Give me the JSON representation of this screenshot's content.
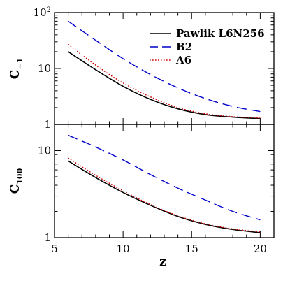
{
  "chart_data": [
    {
      "type": "line",
      "title": "",
      "xlabel": "z",
      "ylabel": "C",
      "ylabel_sub": "−1",
      "yscale": "log",
      "xlim": [
        5,
        21
      ],
      "ylim": [
        1,
        100
      ],
      "show_x_tick_labels": false,
      "grid": false,
      "legend": "top-right",
      "y_ticks": [
        {
          "value": 1,
          "base": "1",
          "exp": ""
        },
        {
          "value": 10,
          "base": "10",
          "exp": ""
        },
        {
          "value": 100,
          "base": "10",
          "exp": "2"
        }
      ],
      "series": [
        {
          "name": "Pawlik L6N256",
          "color": "#000000",
          "dash": "solid",
          "x": [
            6,
            8,
            10,
            12,
            14,
            16,
            18,
            20
          ],
          "y": [
            20,
            9.5,
            4.8,
            2.8,
            1.9,
            1.5,
            1.35,
            1.27
          ]
        },
        {
          "name": "B2",
          "color": "#0000cc",
          "dash": "long-dash",
          "x": [
            6,
            8,
            10,
            12,
            14,
            16,
            18,
            20
          ],
          "y": [
            70,
            32,
            15,
            7.8,
            4.5,
            2.9,
            2.1,
            1.7
          ]
        },
        {
          "name": "A6",
          "color": "#cc0000",
          "dash": "dotted",
          "x": [
            6,
            8,
            10,
            12,
            14,
            16,
            18,
            20
          ],
          "y": [
            27,
            11.5,
            5.5,
            3.1,
            2.0,
            1.55,
            1.38,
            1.3
          ]
        }
      ]
    },
    {
      "type": "line",
      "title": "",
      "xlabel": "z",
      "ylabel": "C",
      "ylabel_sub": "100",
      "yscale": "log",
      "xlim": [
        5,
        21
      ],
      "ylim": [
        1,
        20
      ],
      "show_x_tick_labels": true,
      "grid": false,
      "x_ticks": [
        5,
        10,
        15,
        20
      ],
      "y_ticks": [
        {
          "value": 1,
          "base": "1",
          "exp": ""
        },
        {
          "value": 10,
          "base": "10",
          "exp": ""
        }
      ],
      "series": [
        {
          "name": "Pawlik L6N256",
          "color": "#000000",
          "dash": "solid",
          "x": [
            6,
            8,
            10,
            12,
            14,
            16,
            18,
            20
          ],
          "y": [
            7.6,
            4.9,
            3.3,
            2.35,
            1.75,
            1.42,
            1.24,
            1.14
          ]
        },
        {
          "name": "B2",
          "color": "#0000cc",
          "dash": "long-dash",
          "x": [
            6,
            8,
            10,
            12,
            14,
            16,
            18,
            20
          ],
          "y": [
            15,
            11,
            7.8,
            5.3,
            3.7,
            2.7,
            2.0,
            1.6
          ]
        },
        {
          "name": "A6",
          "color": "#cc0000",
          "dash": "dotted",
          "x": [
            6,
            8,
            10,
            12,
            14,
            16,
            18,
            20
          ],
          "y": [
            8.2,
            5.2,
            3.45,
            2.4,
            1.78,
            1.44,
            1.26,
            1.16
          ]
        }
      ]
    }
  ]
}
